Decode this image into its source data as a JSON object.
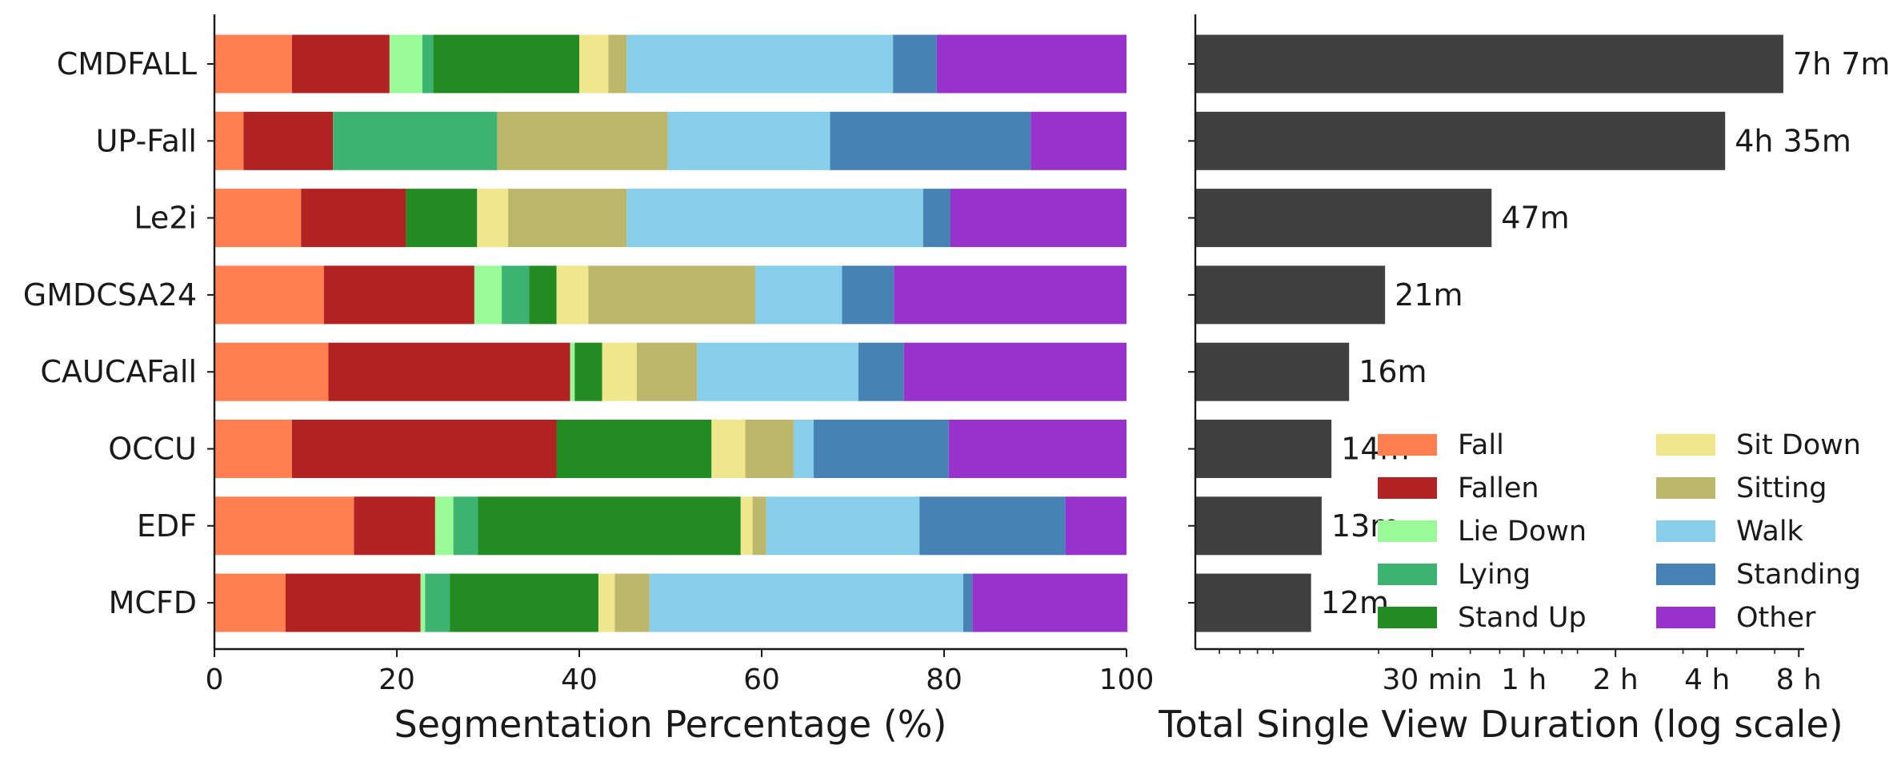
{
  "chart_data": [
    {
      "type": "bar",
      "orientation": "horizontal",
      "stacked": true,
      "categories": [
        "CMDFALL",
        "UP-Fall",
        "Le2i",
        "GMDCSA24",
        "CAUCAFall",
        "OCCU",
        "EDF",
        "MCFD"
      ],
      "xlabel": "Segmentation Percentage (%)",
      "xlim": [
        0,
        100
      ],
      "xticks": [
        "0",
        "20",
        "40",
        "60",
        "80",
        "100"
      ],
      "series": [
        {
          "name": "Fall",
          "color": "#FF7F50",
          "values": [
            8.5,
            3.2,
            9.5,
            12.0,
            12.5,
            8.5,
            15.3,
            7.8
          ]
        },
        {
          "name": "Fallen",
          "color": "#B22222",
          "values": [
            10.7,
            9.8,
            11.5,
            16.5,
            26.5,
            29.0,
            8.9,
            14.8
          ]
        },
        {
          "name": "Lie Down",
          "color": "#98FB98",
          "values": [
            3.6,
            0,
            0,
            3.0,
            0.5,
            0,
            2.0,
            0.5
          ]
        },
        {
          "name": "Lying",
          "color": "#3CB371",
          "values": [
            1.2,
            18.0,
            0,
            3.0,
            0,
            0,
            2.7,
            2.7
          ]
        },
        {
          "name": "Stand Up",
          "color": "#228B22",
          "values": [
            16.0,
            0,
            7.8,
            3.0,
            3.0,
            17.0,
            28.8,
            16.3
          ]
        },
        {
          "name": "Sit Down",
          "color": "#F0E68C",
          "values": [
            3.2,
            0,
            3.4,
            3.5,
            3.8,
            3.7,
            1.3,
            1.8
          ]
        },
        {
          "name": "Sitting",
          "color": "#BDB76B",
          "values": [
            2.0,
            18.7,
            13.0,
            18.3,
            6.6,
            5.3,
            1.5,
            3.8
          ]
        },
        {
          "name": "Walk",
          "color": "#87CEEB",
          "values": [
            29.2,
            17.8,
            32.5,
            9.5,
            17.7,
            2.2,
            16.8,
            34.4
          ]
        },
        {
          "name": "Standing",
          "color": "#4682B4",
          "values": [
            4.8,
            22.0,
            3.0,
            5.7,
            5.0,
            14.8,
            16.0,
            1.0
          ]
        },
        {
          "name": "Other",
          "color": "#9932CC",
          "values": [
            20.8,
            10.5,
            19.3,
            25.5,
            24.4,
            19.5,
            6.7,
            17.0
          ]
        }
      ]
    },
    {
      "type": "bar",
      "orientation": "horizontal",
      "categories": [
        "CMDFALL",
        "UP-Fall",
        "Le2i",
        "GMDCSA24",
        "CAUCAFall",
        "OCCU",
        "EDF",
        "MCFD"
      ],
      "values_minutes": [
        427,
        275,
        47,
        21,
        16,
        14,
        13,
        12
      ],
      "value_labels": [
        "7h 7m",
        "4h 35m",
        "47m",
        "21m",
        "16m",
        "14m",
        "13m",
        "12m"
      ],
      "bar_color": "#404040",
      "xlabel": "Total Single View Duration (log scale)",
      "xscale": "log",
      "xlim_minutes": [
        5,
        500
      ],
      "xticks": [
        {
          "minutes": 30,
          "label": "30 min"
        },
        {
          "minutes": 60,
          "label": "1 h"
        },
        {
          "minutes": 120,
          "label": "2 h"
        },
        {
          "minutes": 240,
          "label": "4 h"
        },
        {
          "minutes": 480,
          "label": "8 h"
        }
      ],
      "legend_position": "lower-right",
      "legend_columns": 2
    }
  ]
}
